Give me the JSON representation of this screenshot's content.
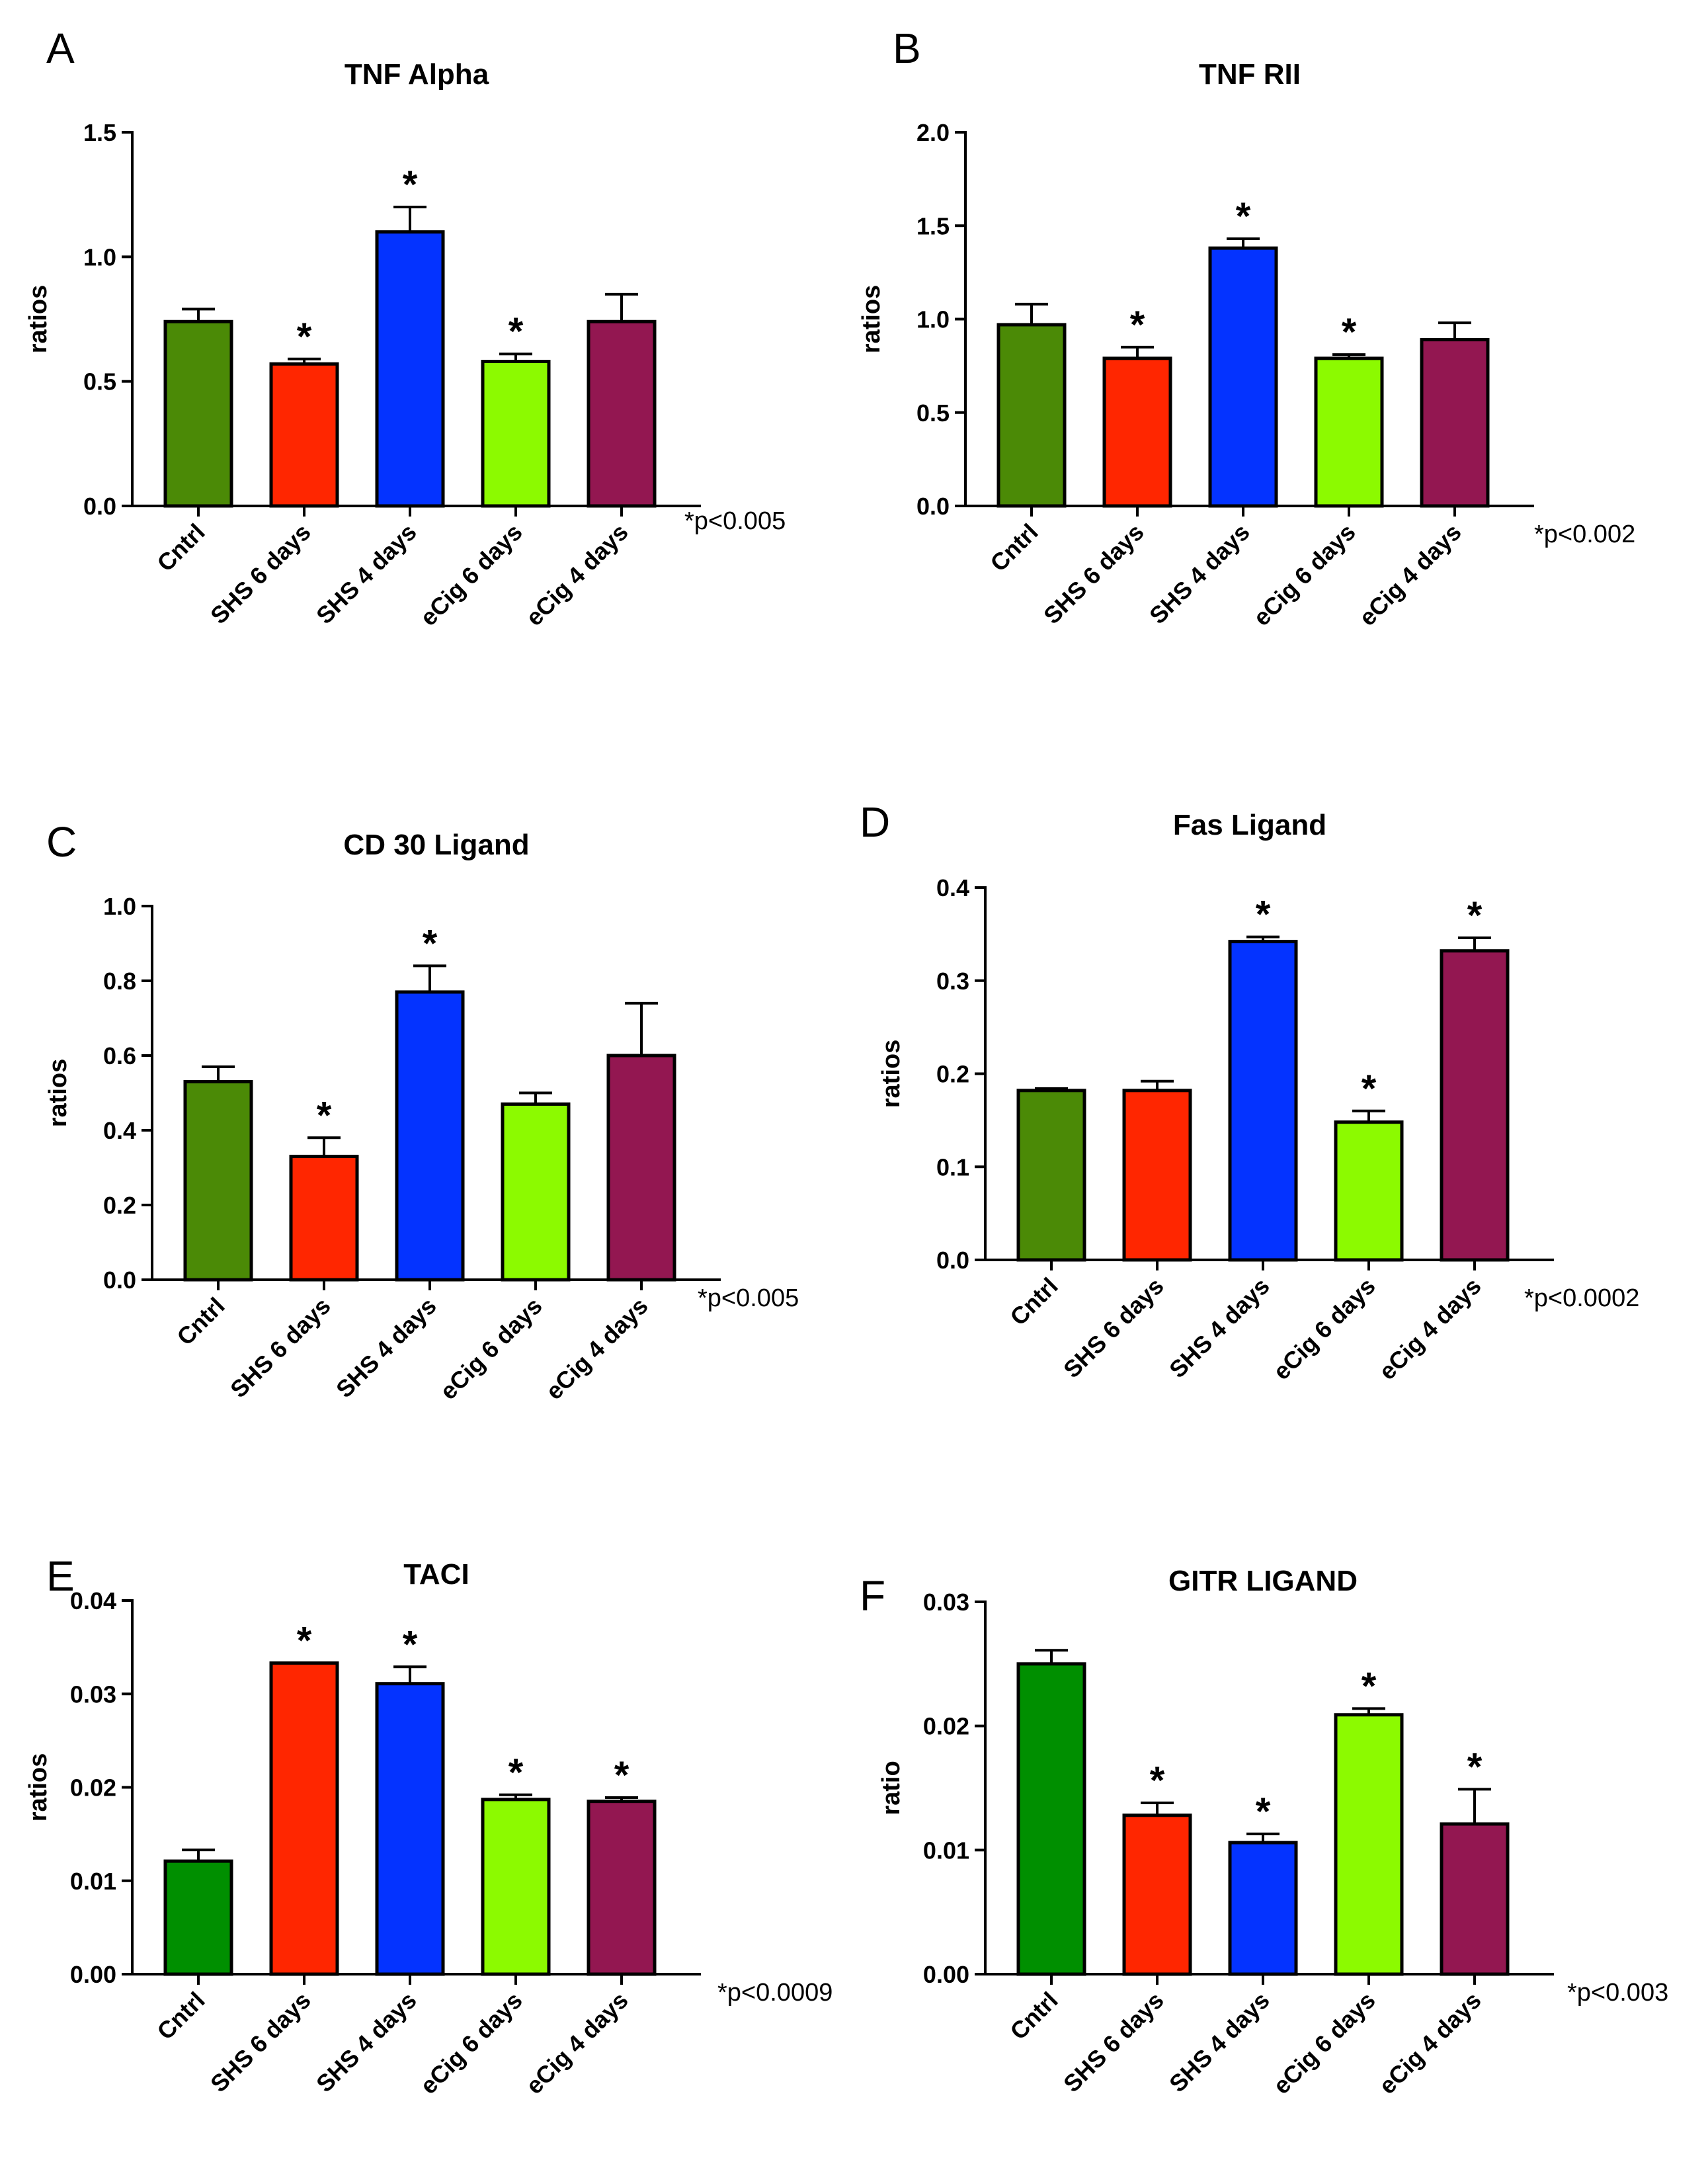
{
  "chart_data": [
    {
      "panel": "A",
      "type": "bar",
      "title": "TNF Alpha",
      "ylabel": "ratios",
      "pvalue": "*p<0.005",
      "ylim": [
        0,
        1.5
      ],
      "yticks": [
        "0.0",
        "0.5",
        "1.0",
        "1.5"
      ],
      "tick_values": [
        0,
        0.5,
        1.0,
        1.5
      ],
      "categories": [
        "Cntrl",
        "SHS 6 days",
        "SHS 4 days",
        "eCig 6 days",
        "eCig 4 days"
      ],
      "values": [
        0.74,
        0.57,
        1.1,
        0.58,
        0.74
      ],
      "errors": [
        0.05,
        0.02,
        0.1,
        0.03,
        0.11
      ],
      "significance": [
        "",
        "*",
        "*",
        "*",
        ""
      ],
      "colors": [
        "#4b8a06",
        "#ff2600",
        "#0433ff",
        "#8cfa00",
        "#931751"
      ]
    },
    {
      "panel": "B",
      "type": "bar",
      "title": "TNF RII",
      "ylabel": "ratios",
      "pvalue": "*p<0.002",
      "ylim": [
        0,
        2.0
      ],
      "yticks": [
        "0.0",
        "0.5",
        "1.0",
        "1.5",
        "2.0"
      ],
      "tick_values": [
        0,
        0.5,
        1.0,
        1.5,
        2.0
      ],
      "categories": [
        "Cntrl",
        "SHS 6 days",
        "SHS 4 days",
        "eCig 6 days",
        "eCig 4 days"
      ],
      "values": [
        0.97,
        0.79,
        1.38,
        0.79,
        0.89
      ],
      "errors": [
        0.11,
        0.06,
        0.05,
        0.02,
        0.09
      ],
      "significance": [
        "",
        "*",
        "*",
        "*",
        ""
      ],
      "colors": [
        "#4b8a06",
        "#ff2600",
        "#0433ff",
        "#8cfa00",
        "#931751"
      ]
    },
    {
      "panel": "C",
      "type": "bar",
      "title": "CD 30 Ligand",
      "ylabel": "ratios",
      "pvalue": "*p<0.005",
      "ylim": [
        0,
        1.0
      ],
      "yticks": [
        "0.0",
        "0.2",
        "0.4",
        "0.6",
        "0.8",
        "1.0"
      ],
      "tick_values": [
        0,
        0.2,
        0.4,
        0.6,
        0.8,
        1.0
      ],
      "categories": [
        "Cntrl",
        "SHS 6 days",
        "SHS 4 days",
        "eCig 6 days",
        "eCig 4 days"
      ],
      "values": [
        0.53,
        0.33,
        0.77,
        0.47,
        0.6
      ],
      "errors": [
        0.04,
        0.05,
        0.07,
        0.03,
        0.14
      ],
      "significance": [
        "",
        "*",
        "*",
        "",
        ""
      ],
      "colors": [
        "#4b8a06",
        "#ff2600",
        "#0433ff",
        "#8cfa00",
        "#931751"
      ]
    },
    {
      "panel": "D",
      "type": "bar",
      "title": "Fas Ligand",
      "ylabel": "ratios",
      "pvalue": "*p<0.0002",
      "ylim": [
        0,
        0.4
      ],
      "yticks": [
        "0.0",
        "0.1",
        "0.2",
        "0.3",
        "0.4"
      ],
      "tick_values": [
        0,
        0.1,
        0.2,
        0.3,
        0.4
      ],
      "categories": [
        "Cntrl",
        "SHS 6 days",
        "SHS 4 days",
        "eCig 6 days",
        "eCig 4 days"
      ],
      "values": [
        0.182,
        0.182,
        0.342,
        0.148,
        0.332
      ],
      "errors": [
        0.002,
        0.01,
        0.005,
        0.012,
        0.014
      ],
      "significance": [
        "",
        "",
        "*",
        "*",
        "*"
      ],
      "colors": [
        "#4b8a06",
        "#ff2600",
        "#0433ff",
        "#8cfa00",
        "#931751"
      ]
    },
    {
      "panel": "E",
      "type": "bar",
      "title": "TACI",
      "ylabel": "ratios",
      "pvalue": "*p<0.0009",
      "ylim": [
        0,
        0.04
      ],
      "yticks": [
        "0.00",
        "0.01",
        "0.02",
        "0.03",
        "0.04"
      ],
      "tick_values": [
        0,
        0.01,
        0.02,
        0.03,
        0.04
      ],
      "categories": [
        "Cntrl",
        "SHS 6 days",
        "SHS 4 days",
        "eCig 6 days",
        "eCig 4 days"
      ],
      "values": [
        0.0121,
        0.0333,
        0.0311,
        0.0187,
        0.0185
      ],
      "errors": [
        0.0012,
        0.0,
        0.0018,
        0.0005,
        0.0004
      ],
      "significance": [
        "",
        "*",
        "*",
        "*",
        "*"
      ],
      "colors": [
        "#008f00",
        "#ff2600",
        "#0433ff",
        "#8cfa00",
        "#931751"
      ]
    },
    {
      "panel": "F",
      "type": "bar",
      "title": "GITR LIGAND",
      "ylabel": "ratio",
      "pvalue": "*p<0.003",
      "ylim": [
        0,
        0.03
      ],
      "yticks": [
        "0.00",
        "0.01",
        "0.02",
        "0.03"
      ],
      "tick_values": [
        0,
        0.01,
        0.02,
        0.03
      ],
      "categories": [
        "Cntrl",
        "SHS 6 days",
        "SHS 4 days",
        "eCig 6 days",
        "eCig 4 days"
      ],
      "values": [
        0.025,
        0.0128,
        0.0106,
        0.0209,
        0.0121
      ],
      "errors": [
        0.0011,
        0.001,
        0.0007,
        0.0005,
        0.0028
      ],
      "significance": [
        "",
        "*",
        "*",
        "*",
        "*"
      ],
      "colors": [
        "#008f00",
        "#ff2600",
        "#0433ff",
        "#8cfa00",
        "#931751"
      ]
    }
  ]
}
